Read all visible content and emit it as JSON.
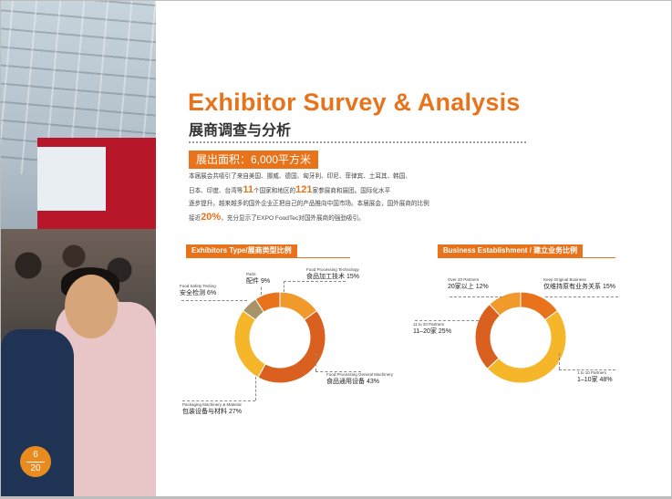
{
  "page": {
    "number_top": "6",
    "number_bottom": "20"
  },
  "photo": {
    "alt": "exhibition hall crowd"
  },
  "header": {
    "title": "Exhibitor Survey & Analysis",
    "subtitle": "展商调查与分析"
  },
  "area": {
    "label": "展出面积：6,000平方米"
  },
  "intro": {
    "l1": "本届展会共吸引了来自美国、挪威、德国、匈牙利、印尼、菲律宾、土耳其、韩国、",
    "l2a": "日本、印度、台湾等",
    "l2b": "11",
    "l2c": "个国家和地区的",
    "l2d": "121",
    "l2e": "家参展商和展团。国际化水平",
    "l3": "逐步提升。越来越多的国外企业正把自己的产品推向中国市场。本届展会，国外展商的比例",
    "l4a": "接近",
    "l4b": "20%",
    "l4c": "，充分显示了EXPO FoodTec对国外展商的强劲吸引。"
  },
  "colors": {
    "orange": "#e8731a",
    "orange_dark": "#d9601f",
    "orange_light": "#f09a2c",
    "yellow": "#f6b62a",
    "olive": "#a89368"
  },
  "chart_data": [
    {
      "type": "pie",
      "title": "Exhibitors Type/展商类型比例",
      "categories": [
        "Food Processing Technology 食品加工技术",
        "Food Processing General Machinery 食品通用设备",
        "Packaging Machinery & Material 包装设备与材料",
        "Food Safety Testing 安全检测",
        "Parts 配件"
      ],
      "values": [
        15,
        43,
        27,
        6,
        9
      ],
      "labels": [
        {
          "en": "Food Processing Technology",
          "cn": "食品加工技术",
          "pct": "15%"
        },
        {
          "en": "Food Processing General Machinery",
          "cn": "食品通用设备",
          "pct": "43%"
        },
        {
          "en": "Packaging Machinery & Material",
          "cn": "包装设备与材料",
          "pct": "27%"
        },
        {
          "en": "Food Safety Testing",
          "cn": "安全检测",
          "pct": "6%"
        },
        {
          "en": "Parts",
          "cn": "配件",
          "pct": "9%"
        }
      ],
      "colors": [
        "#f09a2c",
        "#d9601f",
        "#f6b62a",
        "#a89368",
        "#e8731a"
      ]
    },
    {
      "type": "pie",
      "title": "Business Establishment / 建立业务比例",
      "categories": [
        "Keep Original Business 仅维持原有业务关系",
        "1 to 10 Partners 1–10家",
        "11 to 20 Partners 11–20家",
        "Over 20 Partners 20家以上"
      ],
      "values": [
        15,
        48,
        25,
        12
      ],
      "labels": [
        {
          "en": "Keep Original Business",
          "cn": "仅维持原有业务关系",
          "pct": "15%"
        },
        {
          "en": "1 to 10 Partners",
          "cn": "1–10家",
          "pct": "48%"
        },
        {
          "en": "11 to 20 Partners",
          "cn": "11–20家",
          "pct": "25%"
        },
        {
          "en": "Over 20 Partners",
          "cn": "20家以上",
          "pct": "12%"
        }
      ],
      "colors": [
        "#e8731a",
        "#f6b62a",
        "#d9601f",
        "#f09a2c"
      ]
    }
  ]
}
